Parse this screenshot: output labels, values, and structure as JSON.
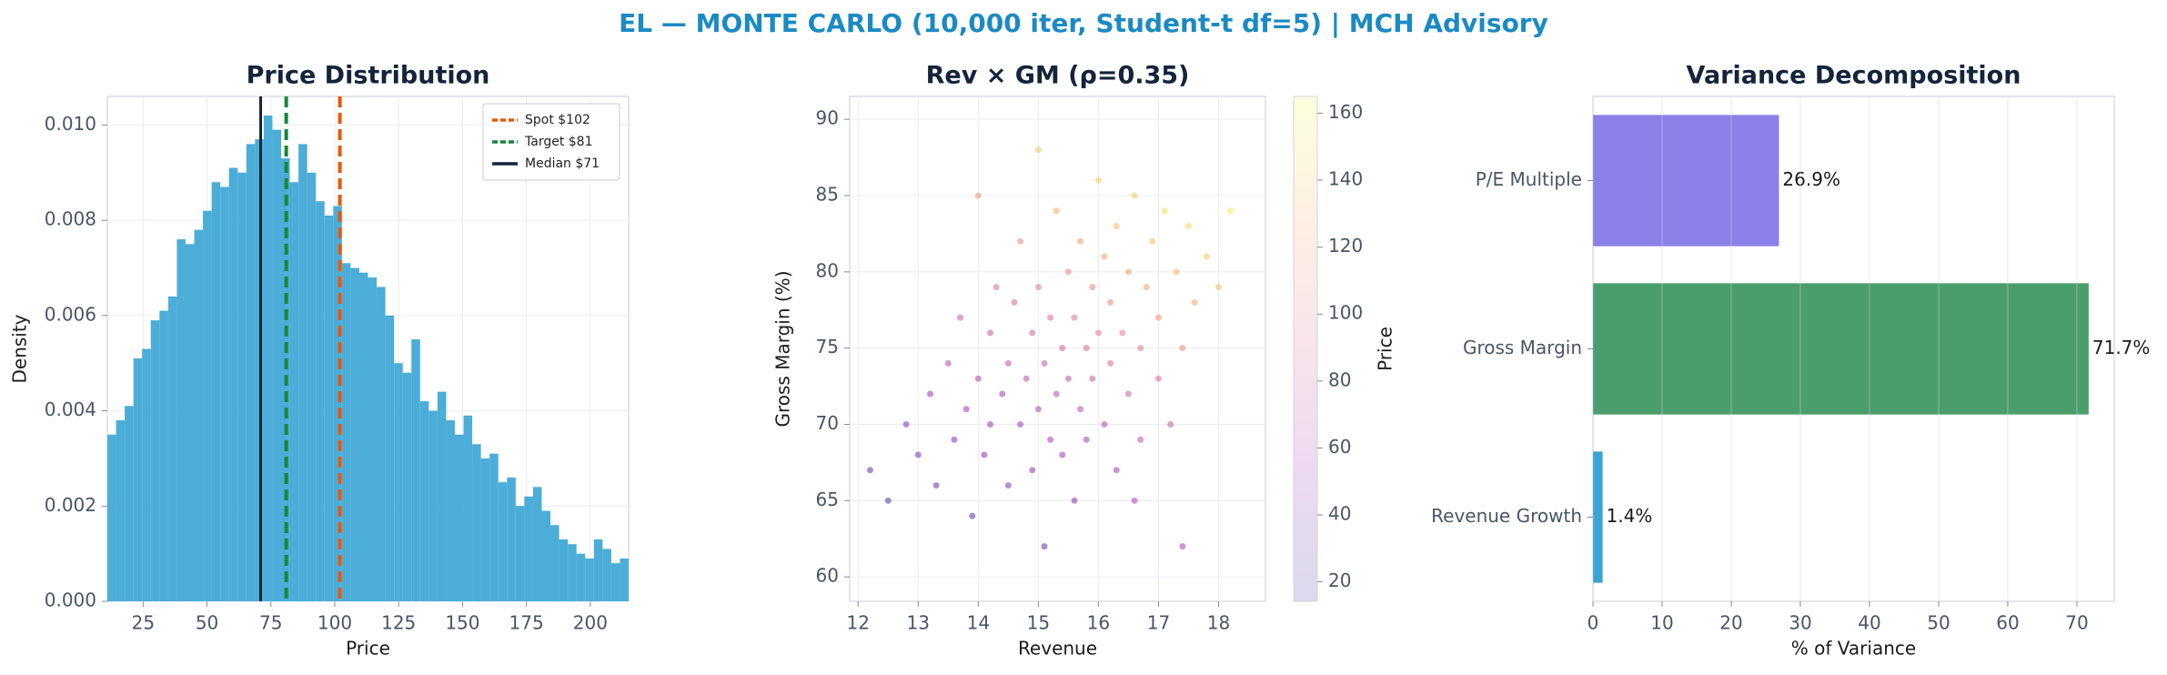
{
  "title": "EL — MONTE CARLO (10,000 iter, Student-t df=5) | MCH Advisory",
  "chart_data": [
    {
      "type": "histogram",
      "title": "Price Distribution",
      "x_label": "Price",
      "y_label": "Density",
      "color": "#4badd8",
      "bins": [
        11,
        14.4,
        17.8,
        21.2,
        24.6,
        28,
        31.4,
        34.8,
        38.2,
        41.6,
        45,
        48.4,
        51.8,
        55.2,
        58.6,
        62,
        65.4,
        68.8,
        72.2,
        75.6,
        79,
        82.4,
        85.8,
        89.2,
        92.6,
        96,
        99.4,
        102.8,
        106.2,
        109.6,
        113,
        116.4,
        119.8,
        123.2,
        126.6,
        130,
        133.4,
        136.8,
        140.2,
        143.6,
        147,
        150.4,
        153.8,
        157.2,
        160.6,
        164,
        167.4,
        170.8,
        174.2,
        177.6,
        181,
        184.4,
        187.8,
        191.2,
        194.6,
        198,
        201.4,
        204.8,
        208.2,
        211.6,
        215
      ],
      "values": [
        0.0035,
        0.0038,
        0.0041,
        0.0051,
        0.0053,
        0.0059,
        0.0061,
        0.0064,
        0.0076,
        0.0075,
        0.0078,
        0.0082,
        0.0088,
        0.0087,
        0.0091,
        0.009,
        0.0096,
        0.0097,
        0.0102,
        0.0099,
        0.0093,
        0.0088,
        0.0096,
        0.009,
        0.0084,
        0.0081,
        0.0083,
        0.0071,
        0.007,
        0.0069,
        0.0068,
        0.0066,
        0.006,
        0.005,
        0.0048,
        0.0055,
        0.0042,
        0.004,
        0.0044,
        0.0038,
        0.0035,
        0.0039,
        0.0033,
        0.003,
        0.0031,
        0.0025,
        0.0026,
        0.002,
        0.0022,
        0.0024,
        0.0019,
        0.0016,
        0.0013,
        0.0012,
        0.001,
        0.0009,
        0.0013,
        0.0011,
        0.0008,
        0.0009
      ],
      "xlim": [
        11,
        215
      ],
      "xticks": [
        25,
        50,
        75,
        100,
        125,
        150,
        175,
        200
      ],
      "ylim": [
        0,
        0.0106
      ],
      "yticks": [
        {
          "value": 0,
          "label": "0.000"
        },
        {
          "value": 0.002,
          "label": "0.002"
        },
        {
          "value": 0.004,
          "label": "0.004"
        },
        {
          "value": 0.006,
          "label": "0.006"
        },
        {
          "value": 0.008,
          "label": "0.008"
        },
        {
          "value": 0.01,
          "label": "0.010"
        }
      ],
      "grid": true,
      "legend": "upper right",
      "annotations": [
        {
          "name": "Spot $102",
          "value": 102,
          "color": "#e8580c",
          "dashed": true
        },
        {
          "name": "Target $81",
          "value": 81,
          "color": "#17873a",
          "dashed": true
        },
        {
          "name": "Median $71",
          "value": 71,
          "color": "#14243a",
          "dashed": false
        }
      ]
    },
    {
      "type": "scatter",
      "title": "Rev × GM (ρ=0.35)",
      "x_label": "Revenue",
      "y_label": "Gross Margin (%)",
      "colormap": "plasma",
      "colorbar_label": "Price",
      "clim": [
        14.2,
        165
      ],
      "cticks": [
        20,
        40,
        60,
        80,
        100,
        120,
        140,
        160
      ],
      "x": [
        12.2,
        12.5,
        12.8,
        13.0,
        13.2,
        13.3,
        13.5,
        13.6,
        13.7,
        13.8,
        13.9,
        14.0,
        14.1,
        14.2,
        14.2,
        14.3,
        14.4,
        14.5,
        14.5,
        14.6,
        14.7,
        14.7,
        14.8,
        14.9,
        14.9,
        15.0,
        15.0,
        15.1,
        15.1,
        15.2,
        15.2,
        15.3,
        15.3,
        15.4,
        15.4,
        15.5,
        15.5,
        15.6,
        15.6,
        15.7,
        15.7,
        15.8,
        15.8,
        15.9,
        15.9,
        16.0,
        16.0,
        16.1,
        16.1,
        16.2,
        16.2,
        16.3,
        16.3,
        16.4,
        16.5,
        16.5,
        16.6,
        16.7,
        16.7,
        16.8,
        16.9,
        17.0,
        17.0,
        17.1,
        17.2,
        17.3,
        17.4,
        17.5,
        17.6,
        17.8,
        18.0,
        18.2,
        17.4,
        15.0,
        14.0,
        16.6
      ],
      "y": [
        67,
        65,
        70,
        68,
        72,
        66,
        74,
        69,
        77,
        71,
        64,
        73,
        68,
        76,
        70,
        79,
        72,
        66,
        74,
        78,
        70,
        82,
        73,
        67,
        76,
        71,
        79,
        74,
        62,
        69,
        77,
        72,
        84,
        75,
        68,
        80,
        73,
        65,
        77,
        71,
        82,
        75,
        69,
        79,
        73,
        86,
        76,
        70,
        81,
        74,
        78,
        67,
        83,
        76,
        72,
        80,
        85,
        75,
        69,
        79,
        82,
        73,
        77,
        84,
        70,
        80,
        75,
        83,
        78,
        81,
        79,
        84,
        62,
        88,
        85,
        65
      ],
      "c": [
        30,
        25,
        45,
        40,
        55,
        30,
        65,
        45,
        80,
        55,
        30,
        65,
        45,
        80,
        55,
        95,
        62,
        40,
        72,
        92,
        58,
        110,
        70,
        48,
        85,
        64,
        100,
        78,
        30,
        58,
        92,
        70,
        125,
        84,
        54,
        108,
        75,
        45,
        96,
        70,
        120,
        90,
        62,
        108,
        82,
        145,
        98,
        68,
        120,
        90,
        108,
        58,
        132,
        102,
        85,
        120,
        145,
        100,
        72,
        122,
        135,
        92,
        112,
        150,
        80,
        130,
        108,
        150,
        125,
        140,
        135,
        160,
        60,
        140,
        115,
        60
      ],
      "xlim": [
        11.86,
        18.78
      ],
      "xticks": [
        12,
        13,
        14,
        15,
        16,
        17,
        18
      ],
      "ylim": [
        58.4,
        91.5
      ],
      "yticks": [
        60,
        65,
        70,
        75,
        80,
        85,
        90
      ],
      "grid": true
    },
    {
      "type": "barh",
      "title": "Variance Decomposition",
      "x_label": "% of Variance",
      "categories": [
        "P/E Multiple",
        "Gross Margin",
        "Revenue Growth"
      ],
      "values": [
        26.9,
        71.7,
        1.4
      ],
      "value_labels": [
        "26.9%",
        "71.7%",
        "1.4%"
      ],
      "colors": [
        "#8b7fe8",
        "#4a9e6b",
        "#3ba3d4"
      ],
      "xlim": [
        0,
        75.4
      ],
      "xticks": [
        0,
        10,
        20,
        30,
        40,
        50,
        60,
        70
      ],
      "grid": true
    }
  ]
}
